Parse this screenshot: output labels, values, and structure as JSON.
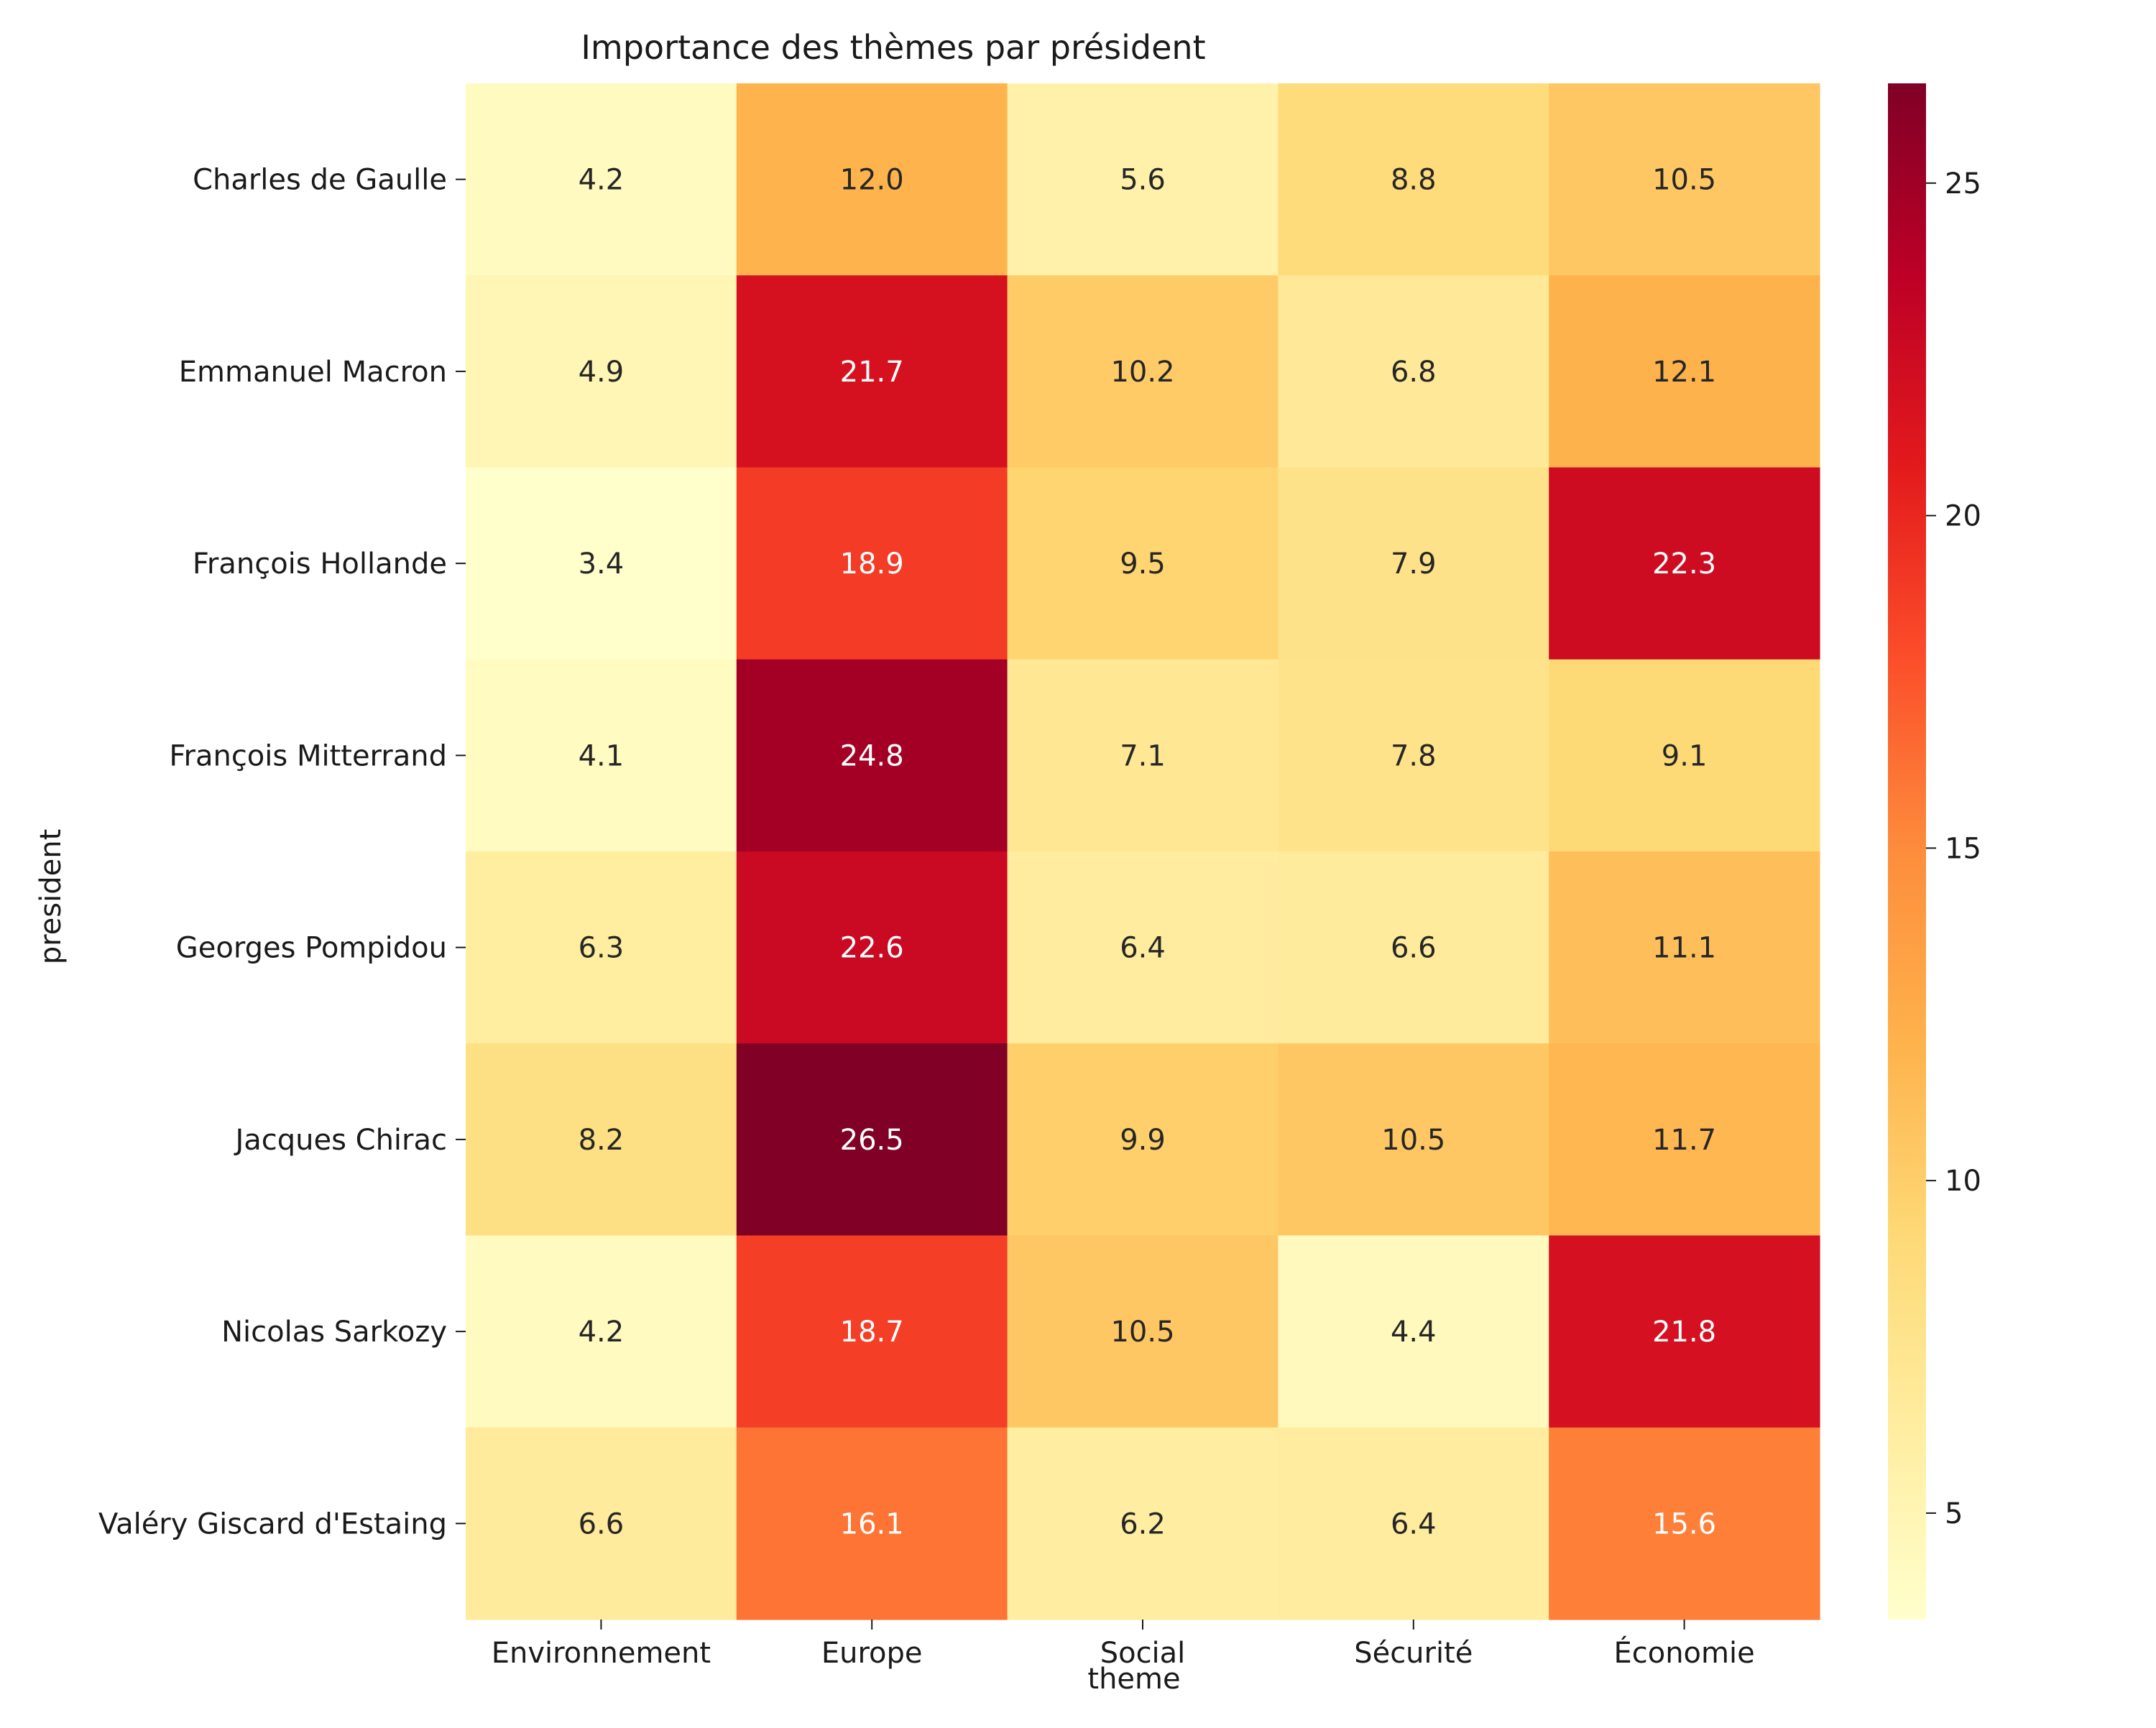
{
  "chart_data": {
    "type": "heatmap",
    "title": "Importance des thèmes par président",
    "xlabel": "theme",
    "ylabel": "president",
    "x_categories": [
      "Environnement",
      "Europe",
      "Social",
      "Sécurité",
      "Économie"
    ],
    "y_categories": [
      "Charles de Gaulle",
      "Emmanuel Macron",
      "François Hollande",
      "François Mitterrand",
      "Georges Pompidou",
      "Jacques Chirac",
      "Nicolas Sarkozy",
      "Valéry Giscard d'Estaing"
    ],
    "values": [
      [
        4.2,
        12.0,
        5.6,
        8.8,
        10.5
      ],
      [
        4.9,
        21.7,
        10.2,
        6.8,
        12.1
      ],
      [
        3.4,
        18.9,
        9.5,
        7.9,
        22.3
      ],
      [
        4.1,
        24.8,
        7.1,
        7.8,
        9.1
      ],
      [
        6.3,
        22.6,
        6.4,
        6.6,
        11.1
      ],
      [
        8.2,
        26.5,
        9.9,
        10.5,
        11.7
      ],
      [
        4.2,
        18.7,
        10.5,
        4.4,
        21.8
      ],
      [
        6.6,
        16.1,
        6.2,
        6.4,
        15.6
      ]
    ],
    "annotation_format": "0.1f",
    "colormap": "YlOrRd",
    "colorbar": {
      "range": [
        3.4,
        26.5
      ],
      "ticks": [
        5,
        10,
        15,
        20,
        25
      ]
    }
  }
}
